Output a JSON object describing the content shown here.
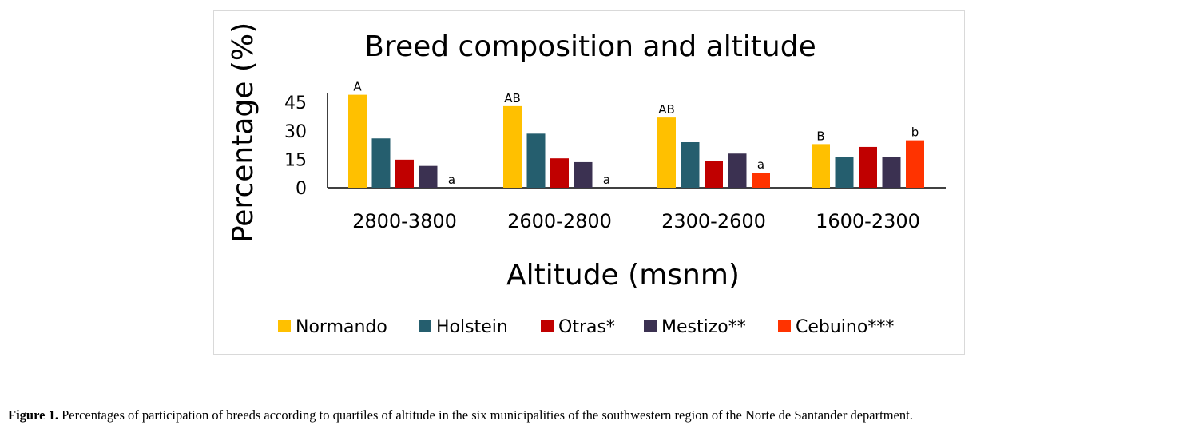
{
  "chart_data": {
    "type": "bar",
    "title": "Breed composition and altitude",
    "xlabel": "Altitude (msnm)",
    "ylabel": "Percentage (%)",
    "yticks": [
      "0",
      "15",
      "30",
      "45"
    ],
    "ylim": [
      0,
      50
    ],
    "legend_position": "bottom",
    "categories": [
      "2800-3800",
      "2600-2800",
      "2300-2600",
      "1600-2300"
    ],
    "series": [
      {
        "name": "Normando",
        "color": "#FFC000",
        "values": [
          49,
          43,
          37,
          23
        ],
        "labels": [
          "A",
          "AB",
          "AB",
          "B"
        ]
      },
      {
        "name": "Holstein",
        "color": "#255E6E",
        "values": [
          26,
          28.5,
          24,
          16
        ],
        "labels": [
          "",
          "",
          "",
          ""
        ]
      },
      {
        "name": "Otras*",
        "color": "#C00000",
        "values": [
          14.8,
          15.5,
          14,
          21.5
        ],
        "labels": [
          "",
          "",
          "",
          ""
        ]
      },
      {
        "name": "Mestizo**",
        "color": "#3B3151",
        "values": [
          11.5,
          13.5,
          18,
          16
        ],
        "labels": [
          "",
          "",
          "",
          ""
        ]
      },
      {
        "name": "Cebuino***",
        "color": "#FF3300",
        "values": [
          0,
          0,
          8,
          25
        ],
        "labels": [
          "a",
          "a",
          "a",
          "b"
        ]
      }
    ]
  },
  "caption": {
    "label": "Figure 1.",
    "text": " Percentages of participation of breeds according to quartiles of altitude in the six municipalities of the southwestern region of the Norte de Santander department."
  }
}
